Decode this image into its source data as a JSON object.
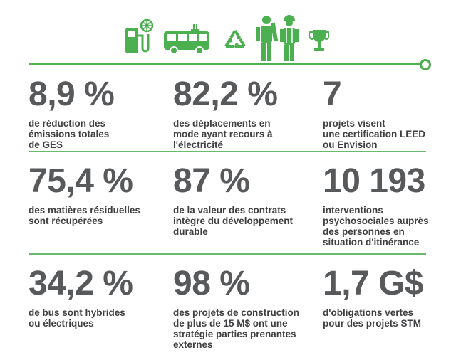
{
  "colors": {
    "accent": "#4caf50",
    "text": "#58595b"
  },
  "icons": [
    "fuel-pump-icon",
    "electric-bus-icon",
    "recycle-icon",
    "workers-icon",
    "trophy-icon"
  ],
  "stats": [
    {
      "value": "8,9 %",
      "desc": [
        "de réduction des",
        "émissions totales",
        "de GES"
      ]
    },
    {
      "value": "82,2 %",
      "desc": [
        "des déplacements en",
        "mode ayant recours à",
        "l'électricité"
      ]
    },
    {
      "value": "7",
      "desc": [
        "projets visent",
        "une certification LEED",
        "ou Envision"
      ]
    },
    {
      "value": "75,4 %",
      "desc": [
        "des matières résiduelles",
        "sont récupérées"
      ]
    },
    {
      "value": "87 %",
      "desc": [
        "de la valeur des contrats",
        "intègre du développement",
        "durable"
      ]
    },
    {
      "value": "10 193",
      "desc": [
        "interventions",
        "psychosociales auprès",
        "des personnes en",
        "situation d'itinérance"
      ]
    },
    {
      "value": "34,2 %",
      "desc": [
        "de bus sont hybrides",
        "ou électriques"
      ]
    },
    {
      "value": "98 %",
      "desc": [
        "des projets de construction",
        "de plus de 15 M$ ont une",
        "stratégie parties prenantes",
        "externes"
      ]
    },
    {
      "value": "1,7 G$",
      "desc": [
        "d'obligations vertes",
        "pour des projets STM"
      ]
    }
  ]
}
